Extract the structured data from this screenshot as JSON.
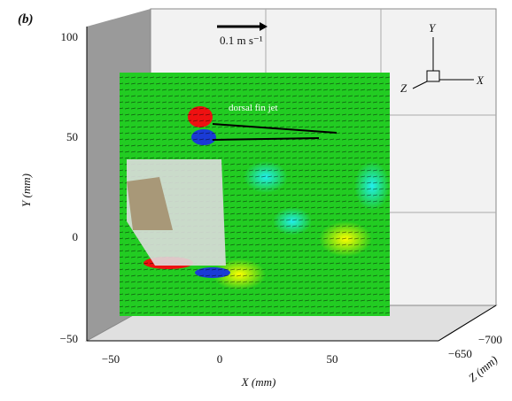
{
  "panel_label": "(b)",
  "scale_label": "0.1 m s⁻¹",
  "annotation": "dorsal fin jet",
  "axes": {
    "y": {
      "label": "Y (mm)",
      "ticks": [
        "100",
        "50",
        "0",
        "−50"
      ]
    },
    "x": {
      "label": "X (mm)",
      "ticks": [
        "−50",
        "0",
        "50"
      ]
    },
    "z": {
      "label": "Z (mm)",
      "ticks": [
        "−700",
        "−650"
      ]
    }
  },
  "triad": {
    "y": "Y",
    "z": "Z",
    "x": "X"
  }
}
